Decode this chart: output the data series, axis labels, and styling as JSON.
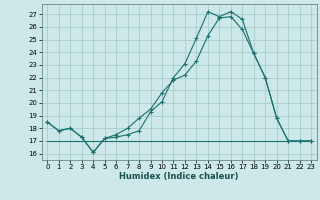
{
  "xlabel": "Humidex (Indice chaleur)",
  "background_color": "#cce8e8",
  "grid_color": "#aacccc",
  "line_color": "#1a7070",
  "xlim": [
    -0.5,
    23.5
  ],
  "ylim": [
    15.5,
    27.8
  ],
  "yticks": [
    16,
    17,
    18,
    19,
    20,
    21,
    22,
    23,
    24,
    25,
    26,
    27
  ],
  "xticks": [
    0,
    1,
    2,
    3,
    4,
    5,
    6,
    7,
    8,
    9,
    10,
    11,
    12,
    13,
    14,
    15,
    16,
    17,
    18,
    19,
    20,
    21,
    22,
    23
  ],
  "line1_x": [
    0,
    1,
    2,
    3,
    4,
    5,
    6,
    7,
    8,
    9,
    10,
    11,
    12,
    13,
    14,
    15,
    16,
    17,
    18,
    19,
    20,
    21,
    22,
    23
  ],
  "line1_y": [
    18.5,
    17.8,
    18.0,
    17.3,
    16.1,
    17.2,
    17.3,
    17.5,
    17.8,
    19.3,
    20.1,
    22.0,
    23.1,
    25.1,
    27.2,
    26.8,
    27.2,
    26.6,
    23.9,
    22.0,
    18.8,
    17.0,
    17.0,
    17.0
  ],
  "line2_x": [
    0,
    1,
    2,
    3,
    4,
    5,
    6,
    7,
    8,
    9,
    10,
    11,
    12,
    13,
    14,
    15,
    16,
    17,
    18,
    19,
    20,
    21,
    22,
    23
  ],
  "line2_y": [
    18.5,
    17.8,
    18.0,
    17.3,
    16.1,
    17.2,
    17.5,
    18.0,
    18.8,
    19.5,
    20.8,
    21.8,
    22.2,
    23.3,
    25.3,
    26.7,
    26.8,
    25.8,
    23.9,
    22.0,
    18.8,
    17.0,
    17.0,
    17.0
  ],
  "line3_x": [
    0,
    9,
    20,
    23
  ],
  "line3_y": [
    17.0,
    17.0,
    17.0,
    17.0
  ]
}
